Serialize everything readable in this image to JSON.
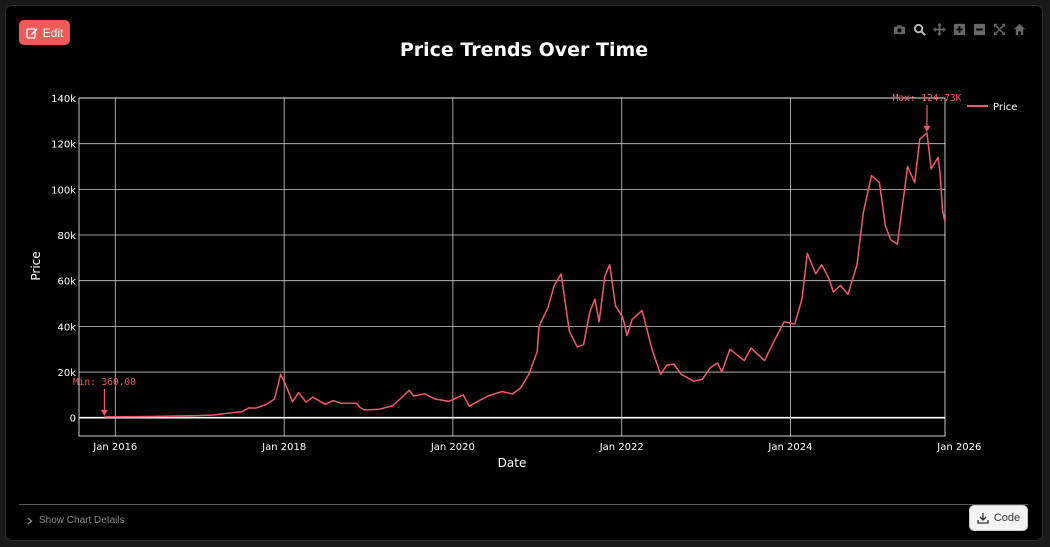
{
  "toolbar": {
    "edit_label": "Edit",
    "modebar_icons": [
      "camera-icon",
      "zoom-icon",
      "pan-icon",
      "zoom-in-icon",
      "zoom-out-icon",
      "autoscale-icon",
      "reset-axes-icon"
    ]
  },
  "footer": {
    "show_details_label": "Show Chart Details",
    "code_label": "Code"
  },
  "colors": {
    "series": "#ef5a6a",
    "background": "#000000",
    "grid": "#cccccc",
    "text": "#ffffff"
  },
  "chart_data": {
    "type": "line",
    "title": "Price Trends Over Time",
    "xlabel": "Date",
    "ylabel": "Price",
    "grid": true,
    "legend_position": "top-right",
    "xlim": [
      "2015-07-28",
      "2025-10-31"
    ],
    "ylim": [
      -8000,
      140000
    ],
    "x_ticks": [
      "2016-01-01",
      "2018-01-01",
      "2020-01-01",
      "2022-01-01",
      "2024-01-01",
      "2026-01-01"
    ],
    "x_tick_labels": [
      "Jan 2016",
      "Jan 2018",
      "Jan 2020",
      "Jan 2022",
      "Jan 2024",
      "Jan 2026"
    ],
    "y_ticks": [
      0,
      20000,
      40000,
      60000,
      80000,
      100000,
      120000,
      140000
    ],
    "y_tick_labels": [
      "0",
      "20k",
      "40k",
      "60k",
      "80k",
      "100k",
      "120k",
      "140k"
    ],
    "annotations": [
      {
        "text": "Min: 360.00",
        "x": "2015-11-15",
        "y": 360
      },
      {
        "text": "Max: 124.73K",
        "x": "2025-08-14",
        "y": 124730
      }
    ],
    "series": [
      {
        "name": "Price",
        "x": [
          "2015-11-15",
          "2016-06-01",
          "2016-12-01",
          "2017-03-01",
          "2017-05-01",
          "2017-07-01",
          "2017-08-01",
          "2017-09-01",
          "2017-10-15",
          "2017-11-20",
          "2017-12-17",
          "2018-01-05",
          "2018-02-06",
          "2018-03-05",
          "2018-04-05",
          "2018-05-05",
          "2018-06-28",
          "2018-08-01",
          "2018-09-01",
          "2018-11-10",
          "2018-11-25",
          "2018-12-15",
          "2019-02-15",
          "2019-04-15",
          "2019-05-15",
          "2019-06-26",
          "2019-07-15",
          "2019-09-01",
          "2019-10-15",
          "2019-12-15",
          "2020-02-15",
          "2020-03-12",
          "2020-04-15",
          "2020-06-01",
          "2020-08-01",
          "2020-09-15",
          "2020-10-20",
          "2020-11-25",
          "2020-12-31",
          "2021-01-08",
          "2021-02-15",
          "2021-03-15",
          "2021-04-14",
          "2021-05-19",
          "2021-06-22",
          "2021-07-20",
          "2021-08-15",
          "2021-09-07",
          "2021-09-25",
          "2021-10-20",
          "2021-11-10",
          "2021-12-05",
          "2022-01-05",
          "2022-01-24",
          "2022-02-15",
          "2022-03-30",
          "2022-05-12",
          "2022-06-18",
          "2022-07-15",
          "2022-08-15",
          "2022-09-15",
          "2022-11-09",
          "2022-12-15",
          "2023-01-20",
          "2023-02-20",
          "2023-03-10",
          "2023-04-14",
          "2023-06-15",
          "2023-07-15",
          "2023-09-11",
          "2023-10-25",
          "2023-12-05",
          "2024-01-20",
          "2024-02-20",
          "2024-03-14",
          "2024-04-20",
          "2024-05-15",
          "2024-06-15",
          "2024-07-05",
          "2024-08-05",
          "2024-09-06",
          "2024-10-15",
          "2024-11-12",
          "2024-12-17",
          "2025-01-20",
          "2025-02-15",
          "2025-03-10",
          "2025-04-08",
          "2025-05-22",
          "2025-06-22",
          "2025-07-14",
          "2025-08-14",
          "2025-09-01",
          "2025-10-01",
          "2025-10-10",
          "2025-10-20",
          "2025-10-30"
        ],
        "y": [
          360,
          550,
          900,
          1200,
          2000,
          2600,
          4300,
          4200,
          5800,
          8200,
          19000,
          15000,
          7000,
          11000,
          6800,
          9000,
          5900,
          7500,
          6400,
          6300,
          4500,
          3400,
          3700,
          5200,
          8000,
          12000,
          9500,
          10500,
          8200,
          7200,
          10000,
          5000,
          7000,
          9500,
          11500,
          10400,
          13000,
          19000,
          29000,
          40000,
          48000,
          58000,
          63000,
          38000,
          31000,
          32000,
          46000,
          52000,
          42000,
          62000,
          67000,
          49000,
          44000,
          36000,
          43000,
          47000,
          30000,
          19000,
          23000,
          23500,
          19000,
          16000,
          16800,
          22000,
          24000,
          20000,
          30000,
          25000,
          30500,
          25000,
          34000,
          42000,
          41000,
          52000,
          72000,
          63000,
          67000,
          61000,
          55000,
          58000,
          54000,
          67000,
          90000,
          106000,
          103000,
          84000,
          78000,
          76000,
          110000,
          103000,
          122000,
          124730,
          109000,
          114000,
          107000,
          91000,
          86000
        ]
      }
    ]
  }
}
